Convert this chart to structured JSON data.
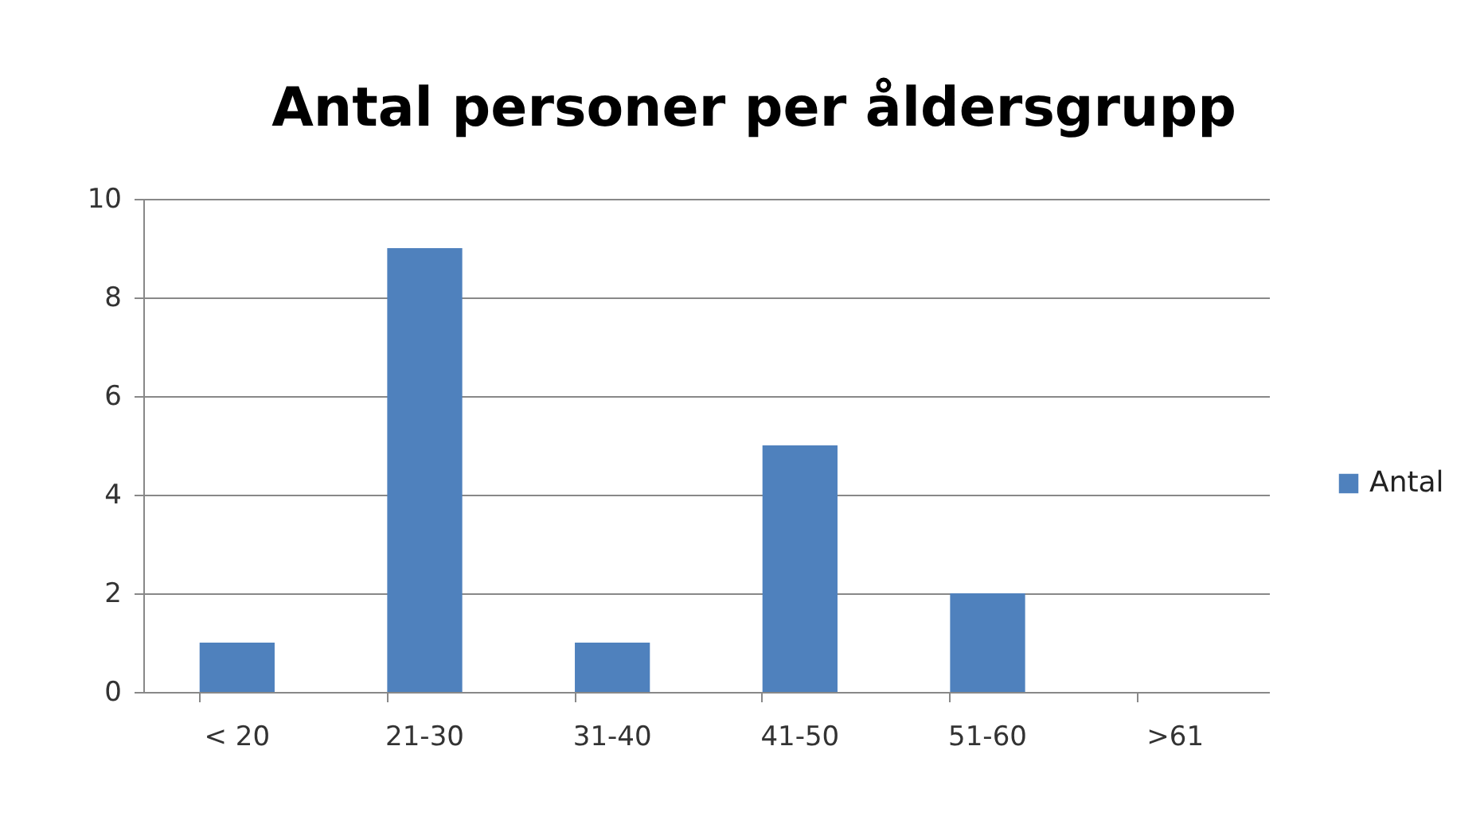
{
  "chart_data": {
    "type": "bar",
    "title": "Antal personer per åldersgrupp",
    "categories": [
      "< 20",
      "21-30",
      "31-40",
      "41-50",
      "51-60",
      ">61"
    ],
    "series": [
      {
        "name": "Antal",
        "color": "#4f81bd",
        "values": [
          1,
          9,
          1,
          5,
          2,
          0
        ]
      }
    ],
    "ylim": [
      0,
      10
    ],
    "yticks": [
      0,
      2,
      4,
      6,
      8,
      10
    ],
    "grid": "y",
    "legend": "right"
  }
}
